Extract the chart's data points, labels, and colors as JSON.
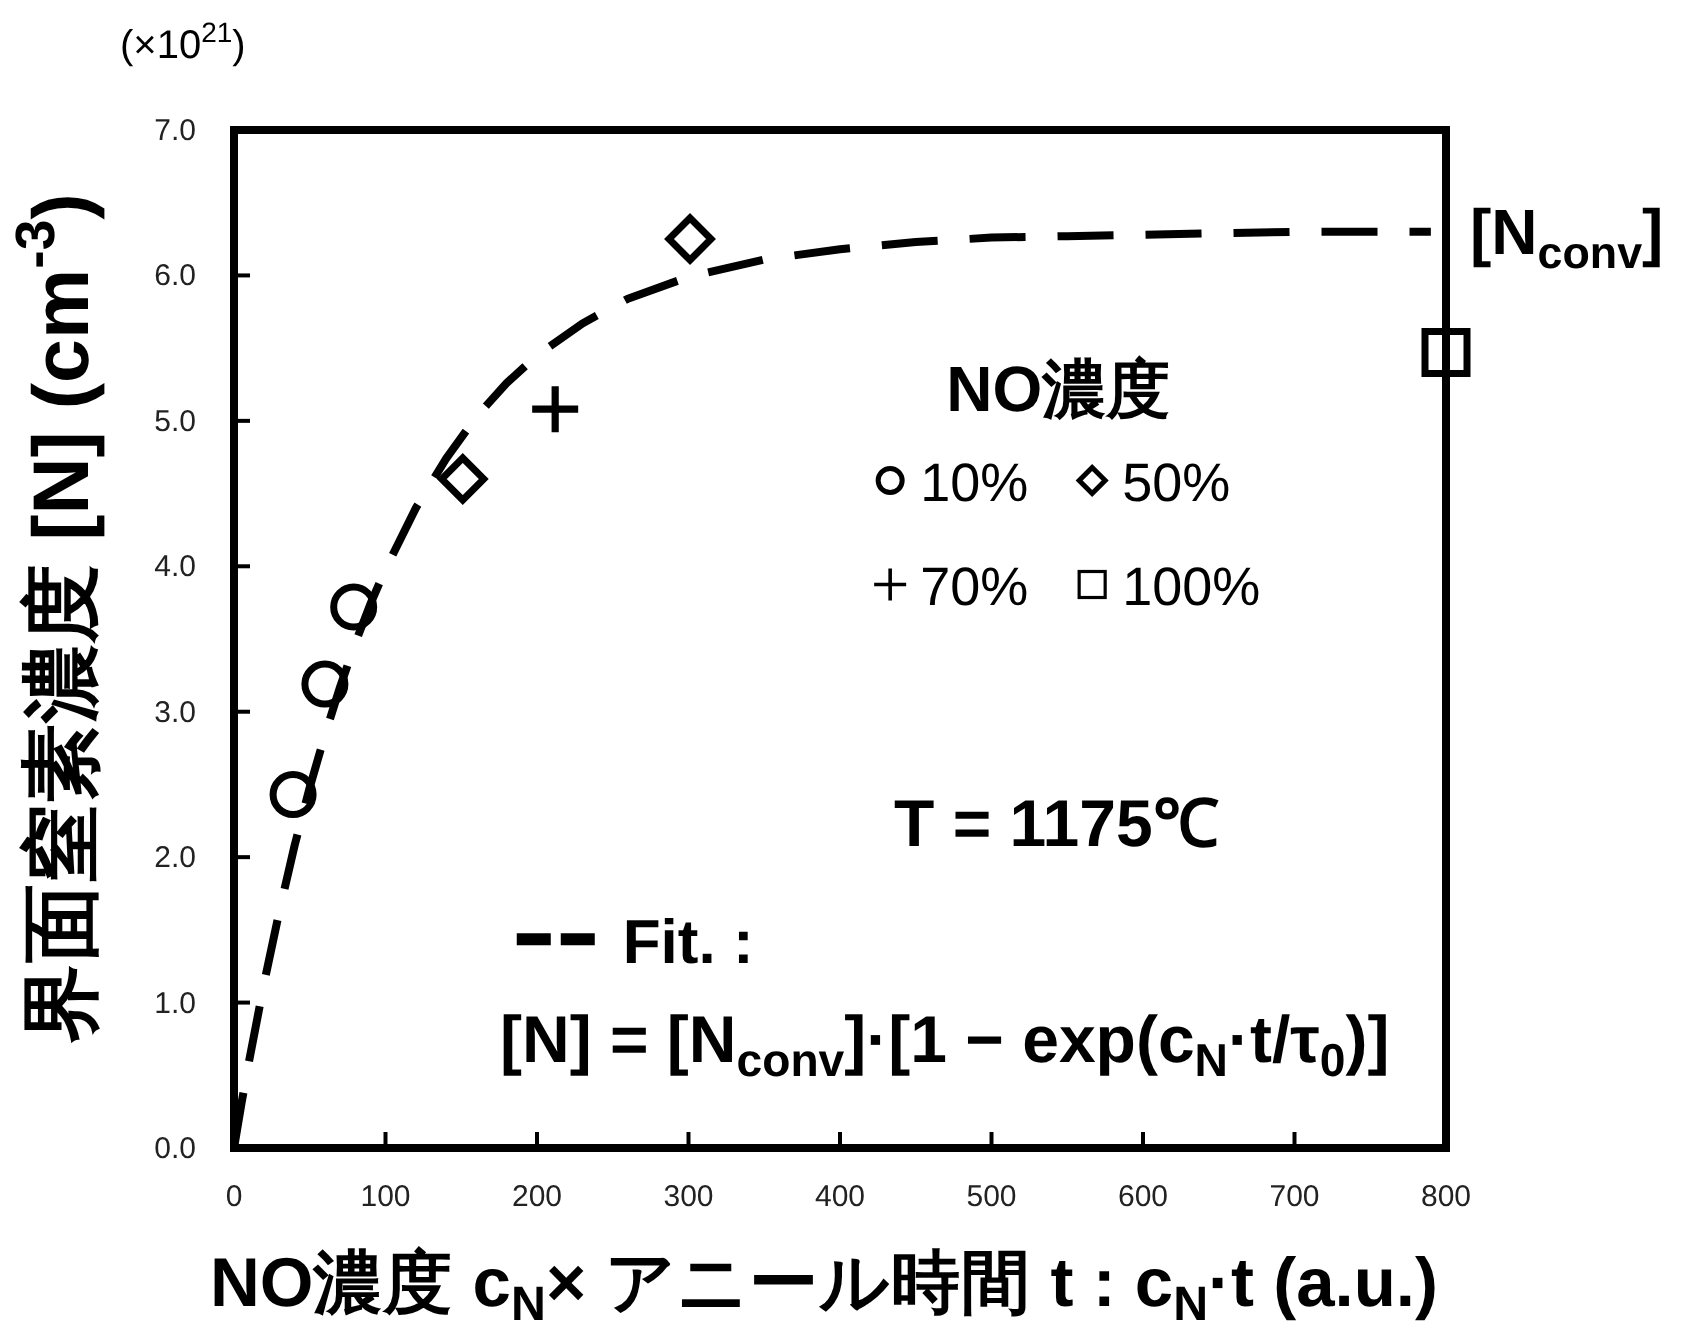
{
  "chart_data": {
    "type": "scatter",
    "xlabel": "NO濃度 c$_{N}$× アニール時間 t : c$_{N}$·t (a.u.)",
    "ylabel": "界面窒素濃度 [N] (cm$^{-3}$)",
    "legend_title": "NO濃度",
    "legend": "right",
    "xlim": [
      0,
      800
    ],
    "xticks": [
      0,
      100,
      200,
      300,
      400,
      500,
      600,
      700,
      800
    ],
    "ylim": [
      0,
      7
    ],
    "yticks": [
      {
        "value": 0,
        "label": "0.0"
      },
      {
        "value": 1,
        "label": "1.0"
      },
      {
        "value": 2,
        "label": "2.0"
      },
      {
        "value": 3,
        "label": "3.0"
      },
      {
        "value": 4,
        "label": "4.0"
      },
      {
        "value": 5,
        "label": "5.0"
      },
      {
        "value": 6,
        "label": "6.0"
      },
      {
        "value": 7,
        "label": "7.0"
      }
    ],
    "series": [
      {
        "name": "10%",
        "color": "#000000",
        "marker": "circle",
        "x": [
          39,
          60,
          79
        ],
        "values": [
          2.43,
          3.19,
          3.72
        ]
      },
      {
        "name": "50%",
        "color": "#000000",
        "marker": "diamond",
        "x": [
          151,
          301
        ],
        "values": [
          4.6,
          6.25
        ]
      },
      {
        "name": "70%",
        "color": "#000000",
        "marker": "cross",
        "x": [
          212
        ],
        "values": [
          5.08
        ]
      },
      {
        "name": "100%",
        "color": "#000000",
        "marker": "square",
        "x": [
          800
        ],
        "values": [
          5.47
        ]
      },
      {
        "name": "Fit. :",
        "type": "line",
        "line_style": "dashed",
        "marker": "none",
        "color": "#000000",
        "x": [
          0,
          5,
          10,
          20,
          30,
          40,
          50,
          60,
          70,
          80,
          90,
          100,
          120,
          140,
          160,
          180,
          200,
          230,
          260,
          300,
          350,
          400,
          450,
          500,
          550,
          600,
          650,
          700,
          750,
          790
        ],
        "values": [
          0,
          0.31,
          0.6,
          1.14,
          1.63,
          2.08,
          2.48,
          2.84,
          3.17,
          3.47,
          3.74,
          3.98,
          4.4,
          4.74,
          5.03,
          5.26,
          5.45,
          5.67,
          5.84,
          5.99,
          6.11,
          6.18,
          6.23,
          6.26,
          6.27,
          6.28,
          6.29,
          6.3,
          6.3,
          6.3
        ]
      }
    ],
    "annotations": [
      "(×10$^{21}$)",
      "T = 1175℃",
      "[N] = [N$_{conv}$]·[1 − exp(c$_{N}$·t/τ$_{0}$)]",
      "[N$_{conv}$]"
    ]
  }
}
